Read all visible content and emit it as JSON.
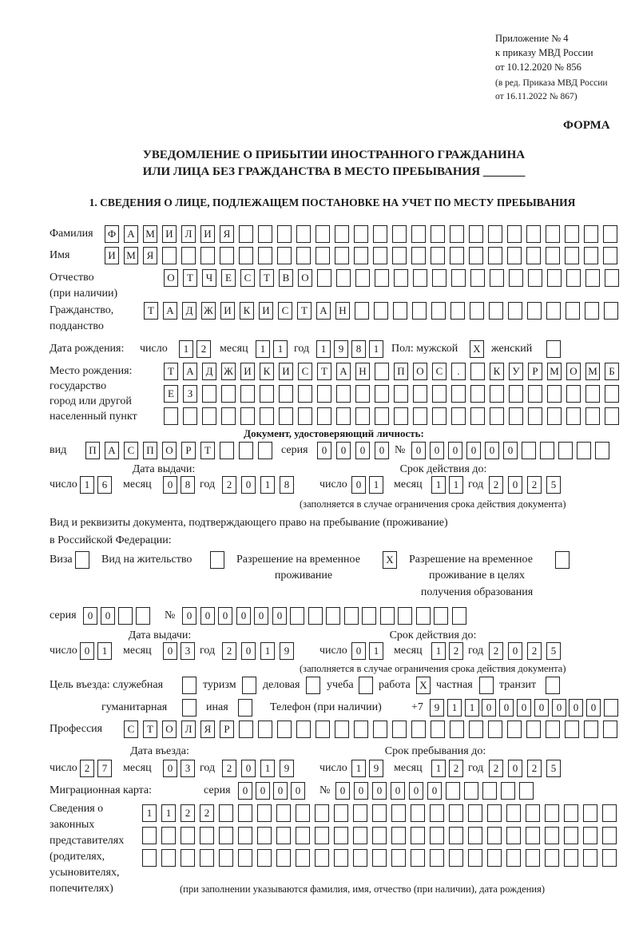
{
  "header": {
    "line1": "Приложение № 4",
    "line2": "к приказу МВД России",
    "line3": "от 10.12.2020 № 856",
    "line4": "(в ред. Приказа МВД России",
    "line5": "от 16.11.2022 № 867)",
    "form_label": "ФОРМА",
    "title1": "УВЕДОМЛЕНИЕ О ПРИБЫТИИ ИНОСТРАННОГО ГРАЖДАНИНА",
    "title2": "ИЛИ ЛИЦА БЕЗ ГРАЖДАНСТВА В МЕСТО ПРЕБЫВАНИЯ _______",
    "section1": "1. СВЕДЕНИЯ О ЛИЦЕ, ПОДЛЕЖАЩЕМ ПОСТАНОВКЕ НА УЧЕТ ПО МЕСТУ ПРЕБЫВАНИЯ"
  },
  "labels": {
    "surname": "Фамилия",
    "name": "Имя",
    "patronymic1": "Отчество",
    "patronymic2": "(при наличии)",
    "citizenship1": "Гражданство,",
    "citizenship2": "подданство",
    "birth_date": "Дата рождения:",
    "day": "число",
    "month": "месяц",
    "year": "год",
    "sex_male": "Пол: мужской",
    "sex_female": "женский",
    "birthplace1": "Место рождения:",
    "birthplace2": "государство",
    "birthplace3": "город или другой",
    "birthplace4": "населенный пункт",
    "id_doc": "Документ, удостоверяющий личность:",
    "kind": "вид",
    "series": "серия",
    "number": "№",
    "issue_date": "Дата выдачи:",
    "valid_until": "Срок действия до:",
    "validity_note": "(заполняется в случае ограничения срока действия документа)",
    "permit_doc1": "Вид и реквизиты документа, подтверждающего право на пребывание (проживание)",
    "permit_doc2": "в Российской Федерации:",
    "visa": "Виза",
    "residence": "Вид на жительство",
    "temp_residence1": "Разрешение на временное",
    "temp_residence2": "проживание",
    "temp_edu1": "Разрешение на временное",
    "temp_edu2": "проживание в целях",
    "temp_edu3": "получения образования",
    "purpose": "Цель въезда: служебная",
    "tourism": "туризм",
    "business": "деловая",
    "study": "учеба",
    "work": "работа",
    "private": "частная",
    "transit": "транзит",
    "humanitarian": "гуманитарная",
    "other": "иная",
    "phone": "Телефон (при наличии)",
    "phone_prefix": "+7",
    "profession": "Профессия",
    "entry_date": "Дата въезда:",
    "stay_until": "Срок пребывания до:",
    "migration_card": "Миграционная карта:",
    "reps1": "Сведения о",
    "reps2": "законных",
    "reps3": "представителях",
    "reps4": "(родителях,",
    "reps5": "усыновителях,",
    "reps6": "попечителях)",
    "reps_note": "(при заполнении указываются фамилия, имя, отчество (при наличии), дата рождения)"
  },
  "fields": {
    "surname": [
      "Ф",
      "А",
      "М",
      "И",
      "Л",
      "И",
      "Я"
    ],
    "name": [
      "И",
      "М",
      "Я"
    ],
    "patronymic": [
      "О",
      "Т",
      "Ч",
      "Е",
      "С",
      "Т",
      "В",
      "О"
    ],
    "citizenship": [
      "Т",
      "А",
      "Д",
      "Ж",
      "И",
      "К",
      "И",
      "С",
      "Т",
      "А",
      "Н"
    ],
    "birth_day": [
      "1",
      "2"
    ],
    "birth_month": [
      "1",
      "1"
    ],
    "birth_year": [
      "1",
      "9",
      "8",
      "1"
    ],
    "sex_male": [
      "X"
    ],
    "sex_female": [
      ""
    ],
    "birthplace_1": [
      "Т",
      "А",
      "Д",
      "Ж",
      "И",
      "К",
      "И",
      "С",
      "Т",
      "А",
      "Н",
      "",
      "П",
      "О",
      "С",
      ".",
      "",
      "К",
      "У",
      "Р",
      "М",
      "О",
      "М",
      "Б"
    ],
    "birthplace_2": [
      "Е",
      "З"
    ],
    "birthplace_3": [],
    "doc_kind": [
      "П",
      "А",
      "С",
      "П",
      "О",
      "Р",
      "Т"
    ],
    "doc_series": [
      "0",
      "0",
      "0",
      "0"
    ],
    "doc_number": [
      "0",
      "0",
      "0",
      "0",
      "0",
      "0"
    ],
    "doc_issue_day": [
      "1",
      "6"
    ],
    "doc_issue_month": [
      "0",
      "8"
    ],
    "doc_issue_year": [
      "2",
      "0",
      "1",
      "8"
    ],
    "doc_exp_day": [
      "0",
      "1"
    ],
    "doc_exp_month": [
      "1",
      "1"
    ],
    "doc_exp_year": [
      "2",
      "0",
      "2",
      "5"
    ],
    "permit_visa": [
      ""
    ],
    "permit_residence": [
      ""
    ],
    "permit_temp": [
      "X"
    ],
    "permit_edu": [
      ""
    ],
    "permit_series": [
      "0",
      "0"
    ],
    "permit_number": [
      "0",
      "0",
      "0",
      "0",
      "0",
      "0"
    ],
    "permit_issue_day": [
      "0",
      "1"
    ],
    "permit_issue_month": [
      "0",
      "3"
    ],
    "permit_issue_year": [
      "2",
      "0",
      "1",
      "9"
    ],
    "permit_exp_day": [
      "0",
      "1"
    ],
    "permit_exp_month": [
      "1",
      "2"
    ],
    "permit_exp_year": [
      "2",
      "0",
      "2",
      "5"
    ],
    "purpose_service": [
      ""
    ],
    "purpose_tourism": [
      ""
    ],
    "purpose_business": [
      ""
    ],
    "purpose_study": [
      ""
    ],
    "purpose_work": [
      "X"
    ],
    "purpose_private": [
      ""
    ],
    "purpose_transit": [
      ""
    ],
    "purpose_humanitarian": [
      ""
    ],
    "purpose_other": [
      ""
    ],
    "phone": [
      "9",
      "1",
      "1",
      "0",
      "0",
      "0",
      "0",
      "0",
      "0",
      "0"
    ],
    "profession": [
      "С",
      "Т",
      "О",
      "Л",
      "Я",
      "Р"
    ],
    "entry_day": [
      "2",
      "7"
    ],
    "entry_month": [
      "0",
      "3"
    ],
    "entry_year": [
      "2",
      "0",
      "1",
      "9"
    ],
    "stay_day": [
      "1",
      "9"
    ],
    "stay_month": [
      "1",
      "2"
    ],
    "stay_year": [
      "2",
      "0",
      "2",
      "5"
    ],
    "mig_series": [
      "0",
      "0",
      "0",
      "0"
    ],
    "mig_number": [
      "0",
      "0",
      "0",
      "0",
      "0",
      "0"
    ],
    "reps_1": [
      "1",
      "1",
      "2",
      "2"
    ],
    "reps_2": [],
    "reps_3": []
  }
}
